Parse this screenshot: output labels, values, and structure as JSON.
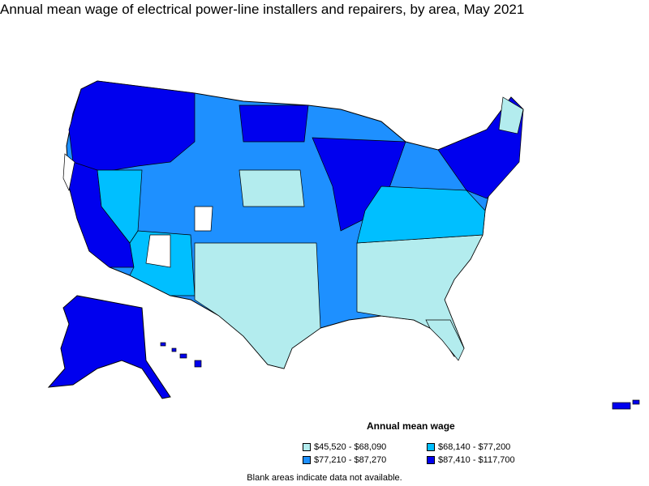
{
  "title": "Annual mean wage of electrical power-line installers and repairers, by area, May 2021",
  "legend": {
    "title": "Annual mean wage",
    "items": [
      {
        "label": "$45,520 - $68,090",
        "color": "#b3ecee"
      },
      {
        "label": "$68,140 - $77,200",
        "color": "#00bfff"
      },
      {
        "label": "$77,210 - $87,270",
        "color": "#1e90ff"
      },
      {
        "label": "$87,410 - $117,700",
        "color": "#0000ee"
      }
    ]
  },
  "note": "Blank areas indicate data not available."
}
